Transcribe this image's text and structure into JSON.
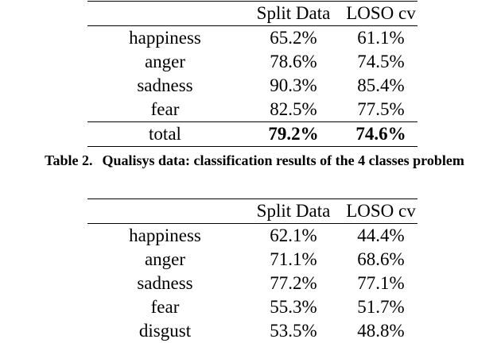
{
  "table1": {
    "headers": [
      "",
      "Split Data",
      "LOSO cv"
    ],
    "rows": [
      {
        "label": "happiness",
        "split": "65.2%",
        "loso": "61.1%"
      },
      {
        "label": "anger",
        "split": "78.6%",
        "loso": "74.5%"
      },
      {
        "label": "sadness",
        "split": "90.3%",
        "loso": "85.4%"
      },
      {
        "label": "fear",
        "split": "82.5%",
        "loso": "77.5%"
      }
    ],
    "total": {
      "label": "total",
      "split": "79.2%",
      "loso": "74.6%"
    }
  },
  "caption1": {
    "number": "Table 2.",
    "text": "Qualisys data: classification results of the 4 classes problem"
  },
  "table2": {
    "headers": [
      "",
      "Split Data",
      "LOSO cv"
    ],
    "rows": [
      {
        "label": "happiness",
        "split": "62.1%",
        "loso": "44.4%"
      },
      {
        "label": "anger",
        "split": "71.1%",
        "loso": "68.6%"
      },
      {
        "label": "sadness",
        "split": "77.2%",
        "loso": "77.1%"
      },
      {
        "label": "fear",
        "split": "55.3%",
        "loso": "51.7%"
      },
      {
        "label": "disgust",
        "split": "53.5%",
        "loso": "48.8%"
      }
    ]
  }
}
